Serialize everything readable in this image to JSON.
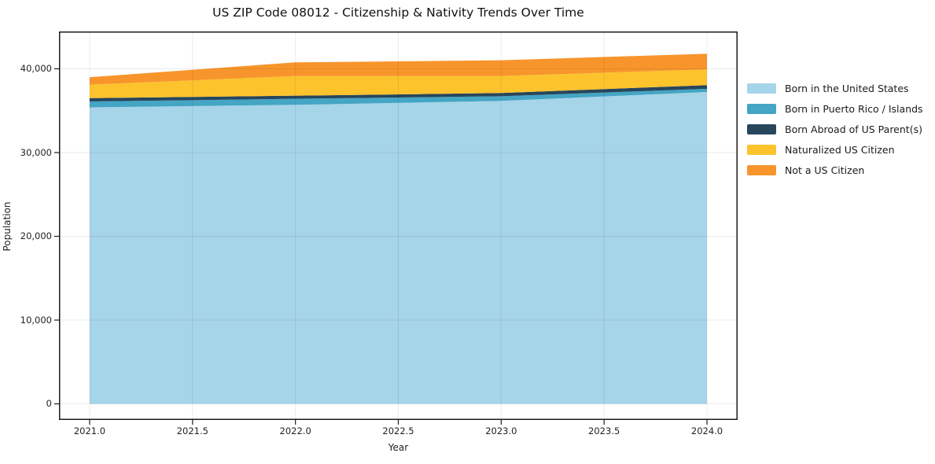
{
  "title": "US ZIP Code 08012 - Citizenship & Nativity Trends Over Time",
  "chart_data": {
    "type": "area",
    "stacked": true,
    "title": "US ZIP Code 08012 - Citizenship & Nativity Trends Over Time",
    "xlabel": "Year",
    "ylabel": "Population",
    "x": [
      2021,
      2022,
      2023,
      2024
    ],
    "series": [
      {
        "name": "Born in the United States",
        "color": "#A6D4E8",
        "values": [
          35400,
          35700,
          36170,
          37230
        ]
      },
      {
        "name": "Born in Puerto Rico / Islands",
        "color": "#44A5C4",
        "values": [
          700,
          720,
          560,
          380
        ]
      },
      {
        "name": "Born Abroad of US Parent(s)",
        "color": "#27465C",
        "values": [
          400,
          370,
          380,
          440
        ]
      },
      {
        "name": "Naturalized US Citizen",
        "color": "#FCC32D",
        "values": [
          1600,
          2350,
          2030,
          1880
        ]
      },
      {
        "name": "Not a US Citizen",
        "color": "#F7952C",
        "values": [
          900,
          1630,
          1880,
          1870
        ]
      }
    ],
    "totals": [
      39000,
      40770,
      41020,
      41800
    ],
    "xlim": [
      2020.851,
      2024.149
    ],
    "ylim": [
      -1925,
      44460
    ],
    "xticks": [
      {
        "value": 2021.0,
        "label": "2021.0"
      },
      {
        "value": 2021.5,
        "label": "2021.5"
      },
      {
        "value": 2022.0,
        "label": "2022.0"
      },
      {
        "value": 2022.5,
        "label": "2022.5"
      },
      {
        "value": 2023.0,
        "label": "2023.0"
      },
      {
        "value": 2023.5,
        "label": "2023.5"
      },
      {
        "value": 2024.0,
        "label": "2024.0"
      }
    ],
    "yticks": [
      {
        "value": 0,
        "label": "0"
      },
      {
        "value": 10000,
        "label": "10,000"
      },
      {
        "value": 20000,
        "label": "20,000"
      },
      {
        "value": 30000,
        "label": "30,000"
      },
      {
        "value": 40000,
        "label": "40,000"
      }
    ],
    "grid": true,
    "legend_position": "right-outside",
    "background": "#ffffff",
    "spine_color": "#1c1c1c",
    "grid_color": "rgba(0,0,0,0.08)"
  }
}
